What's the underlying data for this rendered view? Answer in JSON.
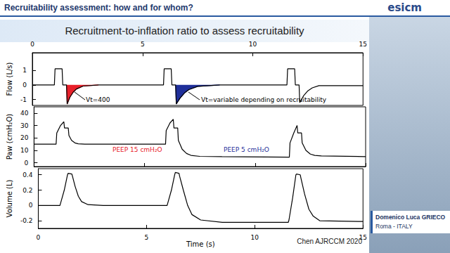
{
  "header": {
    "title": "Recruitability assessment: how and for whom?",
    "logo": "esicm"
  },
  "slide": {
    "title": "Recruitment-to-inflation ratio to assess recruitability",
    "source": "Chen AJRCCM 2020"
  },
  "speaker": {
    "name": "Domenico Luca GRIECO",
    "place": "Roma - ITALY"
  },
  "chart_data": [
    {
      "type": "line",
      "ylabel": "Flow (L/s)",
      "grid": false,
      "x": [
        0,
        0.95,
        1.0,
        1.03,
        1.2,
        1.35,
        1.38,
        1.55,
        1.58,
        1.7,
        1.85,
        2.0,
        2.3,
        3.0,
        5.9,
        5.95,
        5.98,
        6.15,
        6.3,
        6.33,
        6.5,
        6.53,
        6.7,
        6.9,
        7.1,
        7.5,
        8.5,
        11.5,
        11.55,
        11.58,
        11.75,
        11.9,
        11.93,
        12.1,
        12.13,
        12.3,
        12.5,
        12.7,
        13.0,
        15.0
      ],
      "xlim": [
        0,
        15
      ],
      "xticks": [
        0,
        5,
        10,
        15
      ],
      "ylim": [
        -1.4,
        2.2
      ],
      "yticks": [
        -1,
        0,
        1
      ],
      "series": [
        {
          "type": "area",
          "color": "#e8202a",
          "values": [
            null,
            null,
            null,
            null,
            null,
            null,
            null,
            0,
            -1.3,
            -0.85,
            -0.5,
            -0.28,
            -0.08,
            0,
            null,
            null,
            null,
            null,
            null,
            null,
            null,
            null,
            null,
            null,
            null,
            null,
            null,
            null,
            null,
            null,
            null,
            null,
            null,
            null,
            null,
            null,
            null,
            null,
            null,
            null
          ]
        },
        {
          "type": "area",
          "color": "#1f2f9a",
          "values": [
            null,
            null,
            null,
            null,
            null,
            null,
            null,
            null,
            null,
            null,
            null,
            null,
            null,
            null,
            null,
            null,
            null,
            null,
            null,
            null,
            0,
            -1.3,
            -0.9,
            -0.55,
            -0.32,
            -0.1,
            0,
            null,
            null,
            null,
            null,
            null,
            null,
            null,
            null,
            null,
            null,
            null,
            null,
            null
          ]
        },
        {
          "type": "line",
          "color": "#000000",
          "values": [
            0,
            0,
            0,
            1.1,
            1.1,
            1.1,
            0,
            0,
            -1.3,
            -0.85,
            -0.5,
            -0.28,
            -0.08,
            0,
            0,
            0,
            1.1,
            1.1,
            1.1,
            0,
            0,
            -1.3,
            -0.9,
            -0.55,
            -0.32,
            -0.1,
            0,
            0,
            0,
            1.1,
            1.1,
            1.1,
            0,
            0,
            -1.2,
            -0.75,
            -0.4,
            -0.2,
            -0.05,
            -0.05
          ]
        }
      ],
      "annotations": [
        "Vt=400",
        "Vt=variable depending on recruitability"
      ]
    },
    {
      "type": "line",
      "ylabel": "Paw (cmH₂O)",
      "grid": false,
      "tick_labels": "y",
      "x": [
        0,
        0.95,
        1.0,
        1.03,
        1.2,
        1.35,
        1.38,
        1.55,
        1.58,
        1.7,
        1.85,
        2.0,
        2.3,
        3.0,
        5.9,
        5.95,
        5.98,
        6.15,
        6.3,
        6.33,
        6.5,
        6.53,
        6.7,
        6.9,
        7.1,
        7.5,
        8.5,
        11.5,
        11.55,
        11.58,
        11.75,
        11.9,
        11.93,
        12.1,
        12.13,
        12.3,
        12.5,
        12.7,
        13.0,
        15.0
      ],
      "xlim": [
        0,
        15
      ],
      "xticks": [
        0,
        5,
        10,
        15
      ],
      "ylim": [
        -3,
        45
      ],
      "yticks": [
        0,
        10,
        20,
        30,
        40
      ],
      "series": [
        {
          "type": "line",
          "color": "#000000",
          "values": [
            15,
            15,
            15,
            24,
            30,
            33,
            28,
            28,
            22,
            18,
            16,
            15.3,
            15,
            15,
            15,
            15,
            26,
            32,
            35,
            28,
            28,
            18,
            11,
            7.5,
            6,
            5.2,
            5,
            4.5,
            4.5,
            16,
            24,
            30,
            24,
            24,
            16,
            10,
            7,
            6,
            5.5,
            5
          ]
        }
      ],
      "annotations": [
        "PEEP 15 cmH₂O",
        "PEEP 5 cmH₂O"
      ]
    },
    {
      "type": "line",
      "ylabel": "Volume (L)",
      "xlabel": "Time (s)",
      "grid": false,
      "x": [
        0,
        0.95,
        1.0,
        1.03,
        1.2,
        1.35,
        1.38,
        1.55,
        1.58,
        1.7,
        1.85,
        2.0,
        2.3,
        3.0,
        5.9,
        5.95,
        5.98,
        6.15,
        6.3,
        6.33,
        6.5,
        6.53,
        6.7,
        6.9,
        7.1,
        7.5,
        8.5,
        11.5,
        11.55,
        11.58,
        11.75,
        11.9,
        11.93,
        12.1,
        12.13,
        12.3,
        12.5,
        12.7,
        13.0,
        15.0
      ],
      "xlim": [
        0,
        15
      ],
      "xticks": [
        0,
        5,
        10,
        15
      ],
      "ylim": [
        -0.3,
        0.48
      ],
      "yticks": [
        -0.2,
        0,
        0.2,
        0.4
      ],
      "series": [
        {
          "type": "line",
          "color": "#000000",
          "values": [
            0,
            0,
            0,
            0.03,
            0.2,
            0.4,
            0.42,
            0.41,
            0.38,
            0.25,
            0.12,
            0.05,
            0.01,
            0,
            0,
            0,
            0.03,
            0.2,
            0.4,
            0.43,
            0.42,
            0.38,
            0.2,
            0,
            -0.12,
            -0.19,
            -0.22,
            -0.22,
            -0.22,
            -0.19,
            0.1,
            0.4,
            0.41,
            0.4,
            0.36,
            0.15,
            -0.05,
            -0.14,
            -0.2,
            -0.21
          ]
        }
      ]
    }
  ]
}
